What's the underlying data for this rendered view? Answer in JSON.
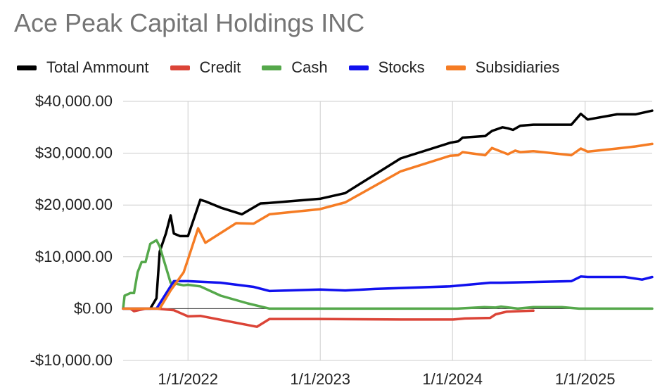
{
  "chart_data": {
    "type": "line",
    "title": "Ace Peak Capital Holdings INC",
    "xlabel": "",
    "ylabel": "",
    "ylim": [
      -10000,
      40000
    ],
    "xlim": [
      "2021-07-06",
      "2025-07-05"
    ],
    "yticks": [
      -10000,
      0,
      10000,
      20000,
      30000,
      40000
    ],
    "ytick_labels": [
      "-$10,000.00",
      "$0.00",
      "$10,000.00",
      "$20,000.00",
      "$30,000.00",
      "$40,000.00"
    ],
    "xticks": [
      "2022-01-01",
      "2023-01-01",
      "2024-01-01",
      "2025-01-01"
    ],
    "xtick_labels": [
      "1/1/2022",
      "1/1/2023",
      "1/1/2024",
      "1/1/2025"
    ],
    "grid": true,
    "legend": "top",
    "series": [
      {
        "name": "Total Ammount",
        "color": "#000000",
        "x": [
          "2021-07-06",
          "2021-07-10",
          "2021-07-18",
          "2021-07-26",
          "2021-08-05",
          "2021-08-14",
          "2021-08-26",
          "2021-09-06",
          "2021-09-19",
          "2021-10-06",
          "2021-10-15",
          "2021-11-01",
          "2021-11-14",
          "2021-11-23",
          "2021-12-10",
          "2022-01-01",
          "2022-02-04",
          "2022-02-18",
          "2022-04-01",
          "2022-05-30",
          "2022-07-20",
          "2022-08-14",
          "2022-12-31",
          "2023-03-11",
          "2023-08-11",
          "2023-12-25",
          "2024-01-17",
          "2024-01-29",
          "2024-03-31",
          "2024-04-19",
          "2024-05-18",
          "2024-06-02",
          "2024-06-16",
          "2024-07-06",
          "2024-08-11",
          "2024-11-24",
          "2024-12-20",
          "2025-01-08",
          "2025-03-30",
          "2025-05-20",
          "2025-07-05"
        ],
        "values": [
          0,
          0,
          0,
          0,
          0,
          0,
          0,
          0,
          0,
          2000,
          11000,
          14500,
          18000,
          14500,
          14000,
          14000,
          21000,
          20700,
          19500,
          18200,
          20300,
          20400,
          21200,
          22300,
          29000,
          32000,
          32300,
          33000,
          33300,
          34300,
          35000,
          34800,
          34500,
          35300,
          35500,
          35500,
          37600,
          36500,
          37500,
          37500,
          38200
        ]
      },
      {
        "name": "Credit",
        "color": "#db4437",
        "x": [
          "2021-07-06",
          "2021-07-26",
          "2021-08-05",
          "2021-09-06",
          "2021-10-06",
          "2021-11-23",
          "2022-01-01",
          "2022-02-04",
          "2022-07-10",
          "2022-08-14",
          "2022-12-31",
          "2023-08-11",
          "2024-01-03",
          "2024-02-04",
          "2024-04-14",
          "2024-04-29",
          "2024-05-29",
          "2024-06-27",
          "2024-08-11"
        ],
        "values": [
          0,
          0,
          -500,
          0,
          0,
          -300,
          -1500,
          -1400,
          -3500,
          -2000,
          -2000,
          -2100,
          -2100,
          -1900,
          -1800,
          -1100,
          -600,
          -500,
          -400
        ]
      },
      {
        "name": "Cash",
        "color": "#55a84b",
        "x": [
          "2021-07-06",
          "2021-07-10",
          "2021-07-26",
          "2021-08-05",
          "2021-08-15",
          "2021-08-26",
          "2021-09-06",
          "2021-09-19",
          "2021-10-06",
          "2021-10-15",
          "2021-11-14",
          "2021-12-20",
          "2022-01-01",
          "2022-02-04",
          "2022-04-01",
          "2022-06-15",
          "2022-08-14",
          "2023-06-01",
          "2023-12-26",
          "2024-01-14",
          "2024-03-29",
          "2024-04-29",
          "2024-05-14",
          "2024-06-29",
          "2024-08-11",
          "2024-10-29",
          "2024-12-15",
          "2025-07-05"
        ],
        "values": [
          0,
          2500,
          3000,
          3000,
          7000,
          9000,
          9000,
          12500,
          13200,
          12000,
          5000,
          4500,
          4600,
          4300,
          2500,
          1000,
          0,
          0,
          0,
          0,
          300,
          200,
          400,
          0,
          300,
          300,
          0,
          0
        ]
      },
      {
        "name": "Stocks",
        "color": "#1111ee",
        "x": [
          "2021-07-06",
          "2021-10-06",
          "2021-11-23",
          "2022-01-01",
          "2022-04-01",
          "2022-07-01",
          "2022-08-14",
          "2023-01-01",
          "2023-03-11",
          "2023-06-01",
          "2023-12-26",
          "2024-04-14",
          "2024-05-14",
          "2024-11-24",
          "2024-12-20",
          "2025-01-08",
          "2025-04-21",
          "2025-06-07",
          "2025-07-05"
        ],
        "values": [
          0,
          0,
          5300,
          5300,
          5000,
          4200,
          3400,
          3700,
          3500,
          3800,
          4300,
          5000,
          5000,
          5300,
          6200,
          6100,
          6100,
          5600,
          6100
        ]
      },
      {
        "name": "Subsidiaries",
        "color": "#f57c24",
        "x": [
          "2021-07-06",
          "2021-10-06",
          "2021-10-15",
          "2021-11-14",
          "2021-12-20",
          "2022-01-01",
          "2022-01-29",
          "2022-02-18",
          "2022-05-14",
          "2022-07-01",
          "2022-08-14",
          "2022-12-31",
          "2023-03-11",
          "2023-08-11",
          "2023-12-25",
          "2024-01-17",
          "2024-01-29",
          "2024-03-31",
          "2024-04-19",
          "2024-05-18",
          "2024-06-02",
          "2024-06-22",
          "2024-07-06",
          "2024-08-11",
          "2024-11-24",
          "2024-12-20",
          "2025-01-08",
          "2025-03-30",
          "2025-05-20",
          "2025-07-05"
        ],
        "values": [
          0,
          0,
          0,
          3500,
          7000,
          9500,
          15500,
          12700,
          16500,
          16400,
          18200,
          19200,
          20500,
          26500,
          29500,
          29600,
          30200,
          29600,
          31000,
          30200,
          29800,
          30500,
          30200,
          30400,
          29600,
          30900,
          30300,
          30900,
          31300,
          31800
        ]
      }
    ]
  }
}
